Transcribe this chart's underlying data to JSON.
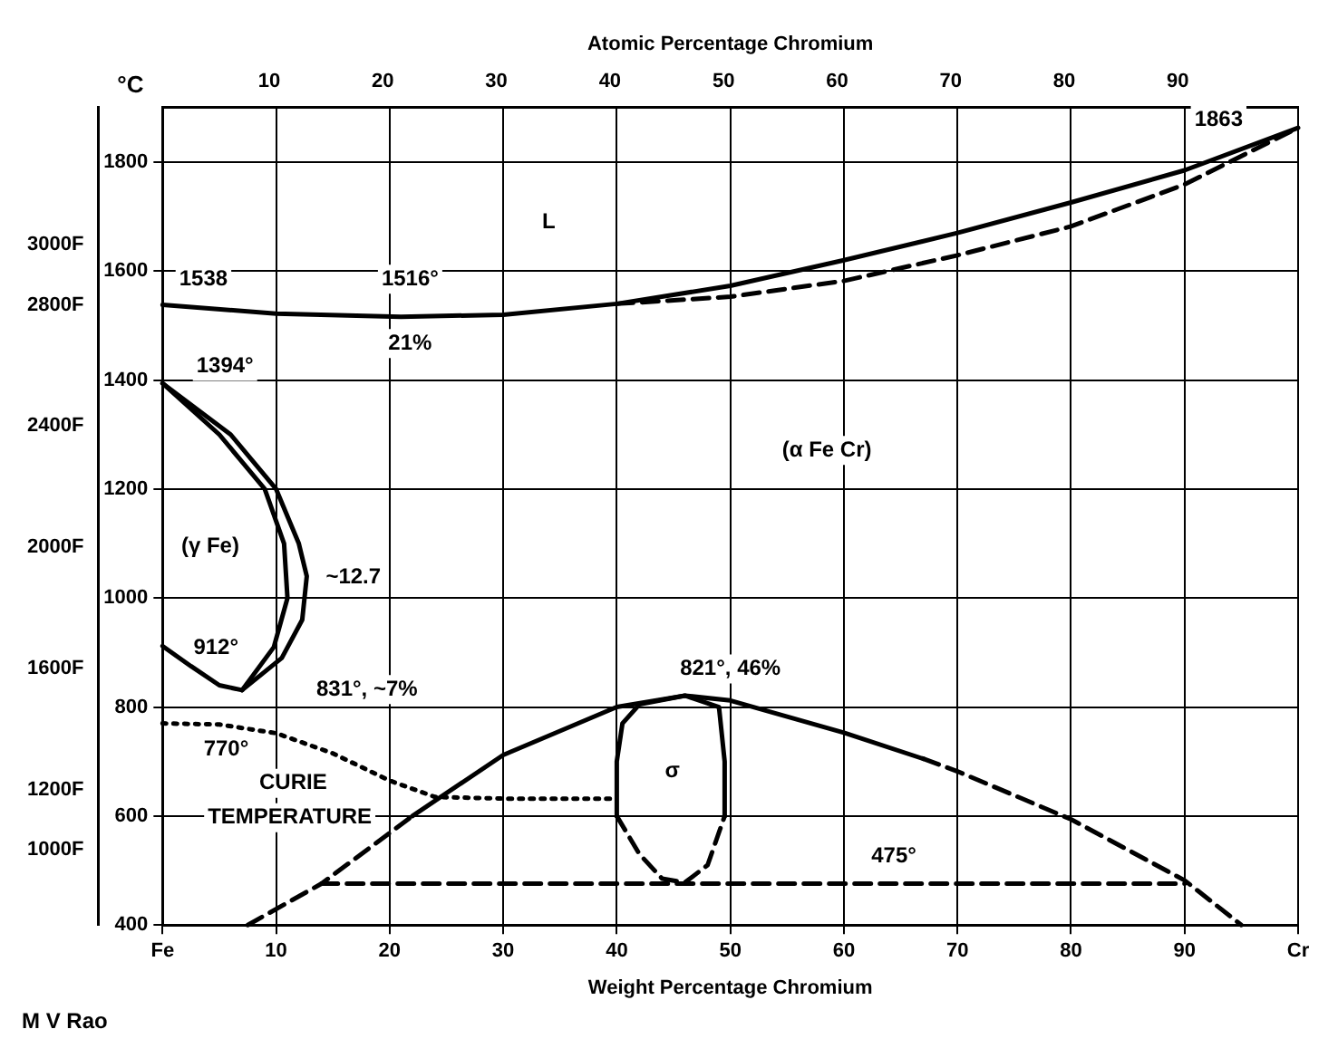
{
  "chart_data": {
    "type": "line",
    "xlabel": "Weight Percentage Chromium",
    "x2label": "Atomic Percentage Chromium",
    "ylabel": "°C",
    "xlim": [
      0,
      100
    ],
    "xticks": [
      {
        "value": 0,
        "label": "Fe"
      },
      10,
      20,
      30,
      40,
      50,
      60,
      70,
      80,
      90,
      {
        "value": 100,
        "label": "Cr"
      }
    ],
    "x2lim": [
      0.6,
      100.6
    ],
    "x2ticks": [
      10,
      20,
      30,
      40,
      50,
      60,
      70,
      80,
      90
    ],
    "ylim": [
      400,
      1900
    ],
    "yticks": [
      400,
      600,
      800,
      1000,
      1200,
      1400,
      1600,
      1800
    ],
    "y2lim": [
      752,
      3452
    ],
    "y2ticks": [
      {
        "value": 1000,
        "label": "1000F"
      },
      {
        "value": 1200,
        "label": "1200F"
      },
      {
        "value": 1600,
        "label": "1600F"
      },
      {
        "value": 2000,
        "label": "2000F"
      },
      {
        "value": 2400,
        "label": "2400F"
      },
      {
        "value": 2800,
        "label": "2800F"
      },
      {
        "value": 3000,
        "label": "3000F"
      }
    ],
    "grid": true,
    "legend": false,
    "marker": "none",
    "series": [
      {
        "color": "#000000",
        "line_style": "solid",
        "x": [
          0,
          10,
          21,
          30,
          40,
          50,
          60,
          70,
          80,
          90,
          100
        ],
        "values": [
          1538,
          1522,
          1516,
          1520,
          1540,
          1573,
          1620,
          1670,
          1726,
          1785,
          1863
        ]
      },
      {
        "color": "#000000",
        "line_style": "dashed",
        "x": [
          40,
          50,
          60,
          70,
          80,
          90,
          100
        ],
        "values": [
          1540,
          1553,
          1582,
          1629,
          1682,
          1759,
          1863
        ]
      },
      {
        "color": "#000000",
        "line_style": "solid",
        "x": [
          0,
          6,
          10,
          12,
          12.7,
          12.3,
          10.5,
          7,
          5,
          2.5,
          0
        ],
        "values": [
          1394,
          1300,
          1200,
          1100,
          1040,
          960,
          890,
          831,
          840,
          875,
          912
        ]
      },
      {
        "color": "#000000",
        "line_style": "solid",
        "x": [
          0,
          5,
          9,
          10.7,
          11,
          9.8,
          7
        ],
        "values": [
          1394,
          1300,
          1200,
          1100,
          1000,
          910,
          831
        ]
      },
      {
        "color": "#000000",
        "line_style": "dashed",
        "x": [
          7.5,
          14,
          22
        ],
        "values": [
          400,
          476,
          600
        ]
      },
      {
        "color": "#000000",
        "line_style": "solid",
        "x": [
          22,
          30,
          40,
          46,
          50,
          60,
          67
        ],
        "values": [
          600,
          712,
          800,
          821,
          812,
          753,
          705
        ]
      },
      {
        "color": "#000000",
        "line_style": "dashed",
        "x": [
          67,
          70,
          80,
          90,
          95
        ],
        "values": [
          705,
          682,
          594,
          482,
          400
        ]
      },
      {
        "color": "#000000",
        "line_style": "solid",
        "x": [
          40,
          40,
          40.5,
          42,
          46,
          49,
          49.5,
          49.5
        ],
        "values": [
          600,
          700,
          770,
          805,
          821,
          800,
          700,
          600
        ]
      },
      {
        "color": "#000000",
        "line_style": "dashed",
        "x": [
          40,
          42,
          44,
          46,
          48,
          49.5
        ],
        "values": [
          600,
          530,
          485,
          478,
          510,
          600
        ]
      },
      {
        "color": "#000000",
        "line_style": "dashed",
        "x": [
          14,
          90
        ],
        "values": [
          476,
          476
        ]
      },
      {
        "color": "#000000",
        "line_style": "dotted",
        "x": [
          0,
          5,
          10,
          15,
          20,
          24,
          30,
          40
        ],
        "values": [
          770,
          768,
          752,
          715,
          665,
          635,
          632,
          632
        ]
      }
    ],
    "annotations": [
      "L",
      "1538",
      "1516°",
      "21%",
      "1394°",
      "(α Fe Cr)",
      "(γ Fe)",
      "~12.7",
      "912°",
      "831°, ~7%",
      "770°",
      "CURIE",
      "TEMPERATURE",
      "821°, 46%",
      "σ",
      "475°",
      "1863",
      "M V Rao"
    ]
  }
}
